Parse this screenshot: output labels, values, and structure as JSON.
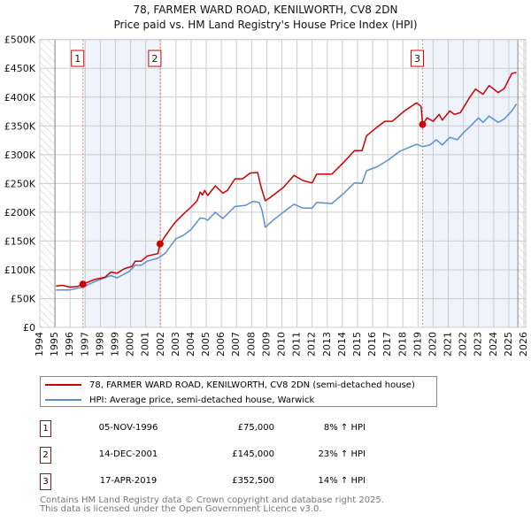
{
  "title_line1": "78, FARMER WARD ROAD, KENILWORTH, CV8 2DN",
  "title_line2": "Price paid vs. HM Land Registry's House Price Index (HPI)",
  "chart_data": {
    "type": "line",
    "title": "78, FARMER WARD ROAD, KENILWORTH, CV8 2DN — Price paid vs. HM Land Registry's House Price Index (HPI)",
    "xlim": [
      1994,
      2026
    ],
    "ylim": [
      0,
      500000
    ],
    "x_ticks": [
      1994,
      1995,
      1996,
      1997,
      1998,
      1999,
      2000,
      2001,
      2002,
      2003,
      2004,
      2005,
      2006,
      2007,
      2008,
      2009,
      2010,
      2011,
      2012,
      2013,
      2014,
      2015,
      2016,
      2017,
      2018,
      2019,
      2020,
      2021,
      2022,
      2023,
      2024,
      2025,
      2026
    ],
    "y_ticks": [
      0,
      50000,
      100000,
      150000,
      200000,
      250000,
      300000,
      350000,
      400000,
      450000,
      500000
    ],
    "y_tick_labels": [
      "£0",
      "£50K",
      "£100K",
      "£150K",
      "£200K",
      "£250K",
      "£300K",
      "£350K",
      "£400K",
      "£450K",
      "£500K"
    ],
    "grid": true,
    "colors": {
      "property": "#cc0000",
      "hpi": "#5b8fd0",
      "shade": "#eef3fc"
    },
    "series": [
      {
        "name": "78, FARMER WARD ROAD, KENILWORTH, CV8 2DN (semi-detached house)",
        "x": [
          1995.07,
          1995.5,
          1996,
          1996.5,
          1996.85,
          1997.6,
          1998.3,
          1998.7,
          1999.1,
          1999.6,
          2000.1,
          2000.3,
          2000.7,
          2001.1,
          2001.8,
          2001.95,
          2002.3,
          2002.7,
          2003,
          2003.5,
          2004,
          2004.4,
          2004.6,
          2004.75,
          2004.9,
          2005.1,
          2005.6,
          2006.1,
          2006.4,
          2006.9,
          2007.4,
          2007.9,
          2008.4,
          2008.6,
          2008.9,
          2009.2,
          2010.1,
          2010.8,
          2011.4,
          2012,
          2012.3,
          2013.3,
          2014.1,
          2014.8,
          2015.3,
          2015.6,
          2016.3,
          2016.8,
          2017.3,
          2018.1,
          2018.9,
          2019.2,
          2019.3,
          2019.6,
          2020,
          2020.4,
          2020.6,
          2021.1,
          2021.4,
          2021.8,
          2022.4,
          2022.8,
          2023.3,
          2023.7,
          2024.3,
          2024.7,
          2025.2,
          2025.5
        ],
        "y": [
          72000,
          73000,
          70000,
          71000,
          75000,
          83000,
          87000,
          96000,
          94000,
          102000,
          106000,
          115000,
          115000,
          124000,
          128000,
          145000,
          159000,
          174000,
          184000,
          197000,
          209000,
          220000,
          235000,
          230000,
          238000,
          229000,
          246000,
          233000,
          238000,
          258000,
          258000,
          268000,
          269000,
          246000,
          220000,
          225000,
          243000,
          264000,
          255000,
          251000,
          266000,
          266000,
          287000,
          307000,
          307000,
          333000,
          348000,
          358000,
          358000,
          376000,
          390000,
          384000,
          352500,
          364000,
          358000,
          370000,
          360000,
          376000,
          370000,
          373000,
          399000,
          414000,
          405000,
          420000,
          408000,
          415000,
          441000,
          443000
        ]
      },
      {
        "name": "HPI: Average price, semi-detached house, Warwick",
        "x": [
          1995.07,
          1996,
          1996.85,
          1997.6,
          1998.7,
          1999.1,
          1999.9,
          2000.3,
          2000.7,
          2001.1,
          2001.8,
          2002.3,
          2003,
          2003.5,
          2004,
          2004.6,
          2004.9,
          2005.1,
          2005.6,
          2006.1,
          2006.9,
          2007.6,
          2008.1,
          2008.5,
          2008.7,
          2008.9,
          2009.5,
          2010.1,
          2010.8,
          2011.4,
          2012,
          2012.3,
          2013.3,
          2014.1,
          2014.8,
          2015.3,
          2015.6,
          2016.3,
          2017.1,
          2017.8,
          2018.9,
          2019.3,
          2019.8,
          2020.2,
          2020.6,
          2021.1,
          2021.6,
          2022,
          2022.4,
          2023,
          2023.3,
          2023.7,
          2024.3,
          2024.7,
          2025.2,
          2025.5
        ],
        "y": [
          65000,
          65000,
          70000,
          79000,
          90000,
          86000,
          97000,
          108000,
          108000,
          115000,
          120000,
          129000,
          154000,
          160000,
          170000,
          190000,
          189000,
          186000,
          200000,
          189000,
          210000,
          212000,
          219000,
          217000,
          202000,
          174000,
          188000,
          200000,
          214000,
          207000,
          207000,
          217000,
          215000,
          233000,
          251000,
          250000,
          272000,
          279000,
          292000,
          306000,
          318000,
          314000,
          317000,
          326000,
          317000,
          330000,
          326000,
          338000,
          348000,
          364000,
          356000,
          367000,
          356000,
          362000,
          376000,
          388000
        ]
      }
    ],
    "sales": [
      {
        "label": "1",
        "date": "05-NOV-1996",
        "x": 1996.85,
        "price": 75000,
        "price_label": "£75,000",
        "hpi_diff": "8% ↑ HPI"
      },
      {
        "label": "2",
        "date": "14-DEC-2001",
        "x": 2001.95,
        "price": 145000,
        "price_label": "£145,000",
        "hpi_diff": "23% ↑ HPI"
      },
      {
        "label": "3",
        "date": "17-APR-2019",
        "x": 2019.3,
        "price": 352500,
        "price_label": "£352,500",
        "hpi_diff": "14% ↑ HPI"
      }
    ],
    "hatched_ranges": [
      [
        1994,
        1995
      ],
      [
        2025.6,
        2026.1
      ]
    ],
    "shaded_ranges": [
      [
        1996.85,
        2001.95
      ],
      [
        2019.3,
        2025.6
      ]
    ],
    "legend_position": "bottom"
  },
  "legend": {
    "property": "78, FARMER WARD ROAD, KENILWORTH, CV8 2DN (semi-detached house)",
    "hpi": "HPI: Average price, semi-detached house, Warwick"
  },
  "footer_line1": "Contains HM Land Registry data © Crown copyright and database right 2025.",
  "footer_line2": "This data is licensed under the Open Government Licence v3.0."
}
